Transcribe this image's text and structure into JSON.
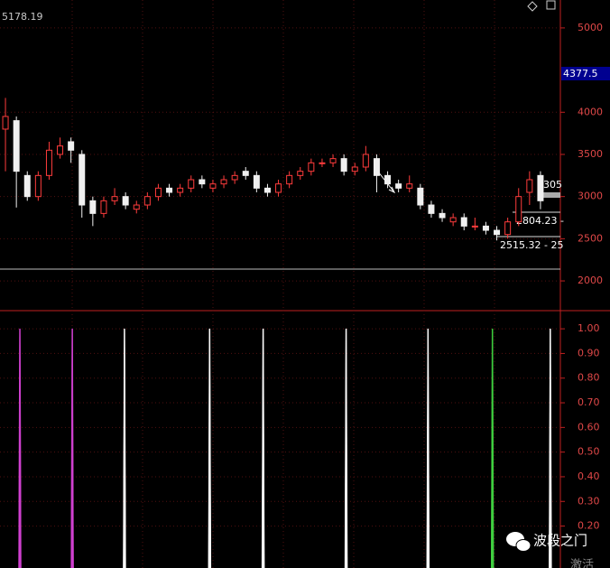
{
  "chart_data": [
    {
      "type": "candlestick",
      "max_label": "5178.19",
      "annotations": [
        "4377.5",
        "2804.23 - ",
        "2515.32 - 25",
        "305"
      ],
      "open": [
        3800,
        3900,
        3250,
        3000,
        3250,
        3500,
        3650,
        3500,
        2950,
        2800,
        2950,
        3000,
        2850,
        2900,
        3000,
        3100,
        3050,
        3100,
        3200,
        3100,
        3150,
        3200,
        3300,
        3250,
        3100,
        3050,
        3150,
        3250,
        3300,
        3400,
        3400,
        3450,
        3300,
        3350,
        3450,
        3250,
        3150,
        3100,
        3100,
        2900,
        2800,
        2700,
        2750,
        2650,
        2650,
        2600,
        2550,
        2700,
        3050,
        3250
      ],
      "high": [
        4170,
        3950,
        3300,
        3300,
        3650,
        3700,
        3700,
        3550,
        3000,
        3000,
        3100,
        3050,
        2950,
        3050,
        3150,
        3150,
        3150,
        3250,
        3250,
        3200,
        3250,
        3300,
        3350,
        3300,
        3150,
        3200,
        3300,
        3350,
        3450,
        3450,
        3500,
        3500,
        3400,
        3600,
        3500,
        3300,
        3200,
        3250,
        3150,
        2950,
        2850,
        2800,
        2800,
        2750,
        2700,
        2650,
        2750,
        3100,
        3300,
        3300
      ],
      "low": [
        3300,
        2870,
        2950,
        2950,
        3200,
        3450,
        3400,
        2750,
        2650,
        2750,
        2900,
        2850,
        2800,
        2850,
        2950,
        3000,
        3000,
        3050,
        3100,
        3050,
        3100,
        3150,
        3200,
        3050,
        3000,
        3000,
        3100,
        3200,
        3250,
        3350,
        3350,
        3250,
        3250,
        3300,
        3050,
        3100,
        3050,
        3050,
        2850,
        2750,
        2700,
        2650,
        2600,
        2600,
        2550,
        2480,
        2500,
        2650,
        2900,
        2850
      ],
      "close": [
        3950,
        3300,
        3000,
        3250,
        3550,
        3600,
        3550,
        2900,
        2800,
        2950,
        3000,
        2900,
        2900,
        3000,
        3100,
        3050,
        3100,
        3200,
        3150,
        3150,
        3200,
        3250,
        3250,
        3100,
        3050,
        3150,
        3250,
        3300,
        3400,
        3400,
        3450,
        3300,
        3350,
        3500,
        3250,
        3150,
        3100,
        3150,
        2900,
        2800,
        2750,
        2750,
        2650,
        2650,
        2600,
        2550,
        2700,
        3000,
        3200,
        2950
      ],
      "up_color": "#ff3c3c",
      "down_color": "#f0f0f0",
      "xlim": [
        -0.5,
        50.74
      ],
      "ylim": [
        1658,
        5331
      ],
      "yticks": [
        2000,
        2500,
        3000,
        3500,
        4000,
        5000
      ],
      "grid": true
    },
    {
      "type": "spike",
      "x": [
        1.32,
        6.12,
        10.9,
        18.7,
        23.6,
        31.2,
        38.7,
        44.6,
        49.9
      ],
      "values": [
        1,
        1,
        1,
        1,
        1,
        1,
        1,
        1,
        1
      ],
      "colors": [
        "#d040d0",
        "#d040d0",
        "#ffffff",
        "#ffffff",
        "#ffffff",
        "#ffffff",
        "#ffffff",
        "#40d040",
        "#ffffff"
      ],
      "xlim": [
        -0.5,
        50.74
      ],
      "ylim": [
        0.03,
        1.07
      ],
      "yticks": [
        {
          "value": 1,
          "label": "1.00"
        },
        {
          "value": 0.9,
          "label": "0.90"
        },
        {
          "value": 0.8,
          "label": "0.80"
        },
        {
          "value": 0.7,
          "label": "0.70"
        },
        {
          "value": 0.6,
          "label": "0.60"
        },
        {
          "value": 0.5,
          "label": "0.50"
        },
        {
          "value": 0.4,
          "label": "0.40"
        },
        {
          "value": 0.3,
          "label": "0.30"
        },
        {
          "value": 0.2,
          "label": "0.20"
        }
      ],
      "grid": true
    }
  ],
  "watermark": "波段之门",
  "footer_text": "激活"
}
